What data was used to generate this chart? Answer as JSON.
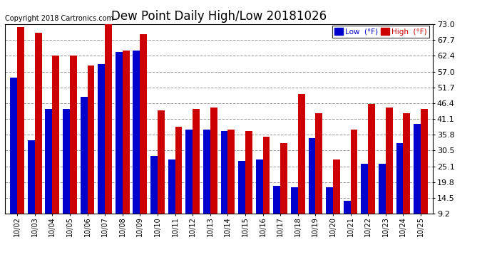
{
  "title": "Dew Point Daily High/Low 20181026",
  "copyright": "Copyright 2018 Cartronics.com",
  "dates": [
    "10/02",
    "10/03",
    "10/04",
    "10/05",
    "10/06",
    "10/07",
    "10/08",
    "10/09",
    "10/10",
    "10/11",
    "10/12",
    "10/13",
    "10/14",
    "10/15",
    "10/16",
    "10/17",
    "10/18",
    "10/19",
    "10/20",
    "10/21",
    "10/22",
    "10/23",
    "10/24",
    "10/25"
  ],
  "high": [
    72.0,
    70.0,
    62.4,
    62.4,
    59.0,
    75.2,
    64.0,
    69.5,
    44.0,
    38.5,
    44.5,
    45.0,
    37.5,
    37.0,
    35.0,
    33.0,
    49.5,
    43.0,
    27.5,
    37.5,
    46.0,
    45.0,
    43.0,
    44.5
  ],
  "low": [
    55.0,
    34.0,
    44.5,
    44.5,
    48.5,
    59.5,
    63.5,
    64.0,
    28.5,
    27.5,
    37.5,
    37.5,
    37.0,
    27.0,
    27.5,
    18.5,
    18.0,
    34.5,
    18.0,
    13.5,
    26.0,
    26.0,
    33.0,
    39.5
  ],
  "ylim": [
    9.2,
    73.0
  ],
  "yticks": [
    9.2,
    14.5,
    19.8,
    25.1,
    30.5,
    35.8,
    41.1,
    46.4,
    51.7,
    57.0,
    62.4,
    67.7,
    73.0
  ],
  "low_color": "#0000cc",
  "high_color": "#cc0000",
  "bg_color": "#ffffff",
  "grid_color": "#999999",
  "title_fontsize": 12,
  "copyright_fontsize": 7,
  "legend_low_label": "Low  (°F)",
  "legend_high_label": "High  (°F)"
}
